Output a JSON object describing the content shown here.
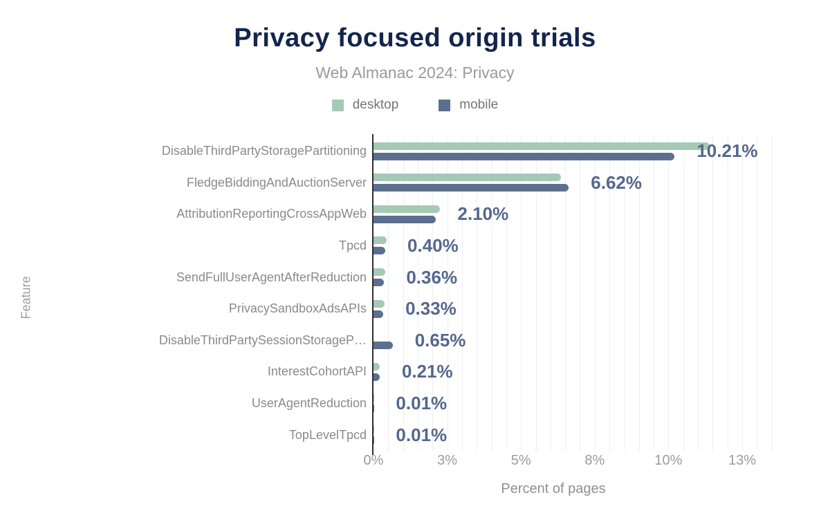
{
  "title": "Privacy focused origin trials",
  "subtitle": "Web Almanac 2024: Privacy",
  "legend": [
    {
      "label": "desktop",
      "color": "#a5c9b5"
    },
    {
      "label": "mobile",
      "color": "#5d6f8e"
    }
  ],
  "chart_data": {
    "type": "bar",
    "orientation": "horizontal",
    "title": "Privacy focused origin trials",
    "subtitle": "Web Almanac 2024: Privacy",
    "xlabel": "Percent of pages",
    "ylabel": "Feature",
    "xlim": [
      0,
      13.5
    ],
    "grid": "vertical minor gridlines every 0.5%",
    "legend_position": "top-center",
    "categories": [
      "DisableThirdPartyStoragePartitioning",
      "FledgeBiddingAndAuctionServer",
      "AttributionReportingCrossAppWeb",
      "Tpcd",
      "SendFullUserAgentAfterReduction",
      "PrivacySandboxAdsAPIs",
      "DisableThirdPartySessionStorageP…",
      "InterestCohortAPI",
      "UserAgentReduction",
      "TopLevelTpcd"
    ],
    "series": [
      {
        "name": "desktop",
        "color": "#a5c9b5",
        "values": [
          11.4,
          6.35,
          2.25,
          0.45,
          0.4,
          0.38,
          0,
          0.22,
          0.01,
          0.01
        ]
      },
      {
        "name": "mobile",
        "color": "#5d6f8e",
        "values": [
          10.21,
          6.62,
          2.1,
          0.4,
          0.36,
          0.33,
          0.65,
          0.21,
          0.01,
          0.01
        ]
      }
    ],
    "value_labels": [
      "10.21%",
      "6.62%",
      "2.10%",
      "0.40%",
      "0.36%",
      "0.33%",
      "0.65%",
      "0.21%",
      "0.01%",
      "0.01%"
    ],
    "x_ticks": [
      {
        "value": 0,
        "label": "0%"
      },
      {
        "value": 2.5,
        "label": "3%"
      },
      {
        "value": 5,
        "label": "5%"
      },
      {
        "value": 7.5,
        "label": "8%"
      },
      {
        "value": 10,
        "label": "10%"
      },
      {
        "value": 12.5,
        "label": "13%"
      }
    ]
  }
}
